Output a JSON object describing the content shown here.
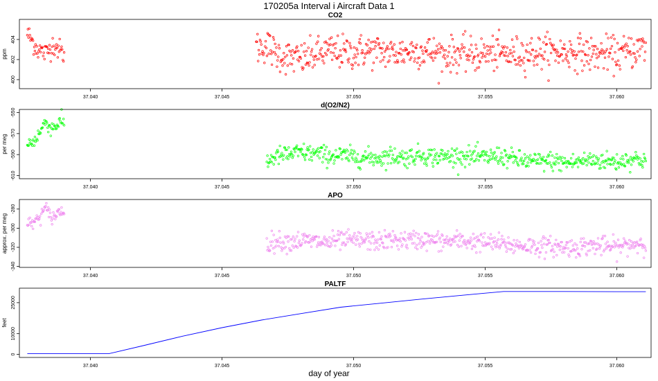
{
  "title": "170205a   Interval i Aircraft Data 1",
  "xlabel": "day of year",
  "chart_data": [
    {
      "type": "scatter",
      "title": "CO2",
      "ylabel": "ppm",
      "yticks": [
        400,
        402,
        404
      ],
      "ylim": [
        399.1,
        406.0
      ],
      "xlim": [
        37.0373,
        37.0613
      ],
      "xticks": [
        37.04,
        37.045,
        37.05,
        37.055,
        37.06
      ],
      "xtick_labels": [
        "37.040",
        "37.045",
        "37.050",
        "37.055",
        "37.060"
      ],
      "series": [
        {
          "color": "#ff0000",
          "segments": [
            {
              "x0": 37.0376,
              "x1": 37.039,
              "points": [
                [
                  37.0376,
                  404.6
                ],
                [
                  37.038,
                  403.0
                ],
                [
                  37.0383,
                  402.6
                ],
                [
                  37.0386,
                  403.6
                ],
                [
                  37.0388,
                  403.0
                ],
                [
                  37.039,
                  402.5
                ]
              ],
              "noise": 0.55
            },
            {
              "x0": 37.0463,
              "x1": 37.0611,
              "points": [
                [
                  37.0463,
                  403.2
                ],
                [
                  37.0467,
                  403.4
                ],
                [
                  37.047,
                  402.7
                ],
                [
                  37.0475,
                  402.2
                ],
                [
                  37.048,
                  402.0
                ],
                [
                  37.0485,
                  402.4
                ],
                [
                  37.049,
                  402.8
                ],
                [
                  37.0495,
                  402.7
                ],
                [
                  37.05,
                  402.7
                ],
                [
                  37.0505,
                  402.9
                ],
                [
                  37.051,
                  402.8
                ],
                [
                  37.0515,
                  402.6
                ],
                [
                  37.052,
                  402.8
                ],
                [
                  37.0525,
                  402.9
                ],
                [
                  37.053,
                  402.7
                ],
                [
                  37.0535,
                  402.5
                ],
                [
                  37.054,
                  402.6
                ],
                [
                  37.0545,
                  402.4
                ],
                [
                  37.055,
                  402.6
                ],
                [
                  37.0555,
                  402.6
                ],
                [
                  37.056,
                  402.5
                ],
                [
                  37.0565,
                  402.7
                ],
                [
                  37.057,
                  402.7
                ],
                [
                  37.0575,
                  402.8
                ],
                [
                  37.058,
                  402.7
                ],
                [
                  37.0585,
                  402.8
                ],
                [
                  37.059,
                  402.5
                ],
                [
                  37.0595,
                  402.6
                ],
                [
                  37.06,
                  402.5
                ],
                [
                  37.0605,
                  402.8
                ],
                [
                  37.0611,
                  403.3
                ]
              ],
              "noise": 0.85
            }
          ]
        }
      ]
    },
    {
      "type": "scatter",
      "title": "d(O2/N2)",
      "ylabel": "per meg",
      "yticks": [
        -610,
        -590,
        -570,
        -550
      ],
      "ylim": [
        -613,
        -547
      ],
      "xlim": [
        37.0373,
        37.0613
      ],
      "xticks": [
        37.04,
        37.045,
        37.05,
        37.055,
        37.06
      ],
      "xtick_labels": [
        "37.040",
        "37.045",
        "37.050",
        "37.055",
        "37.060"
      ],
      "series": [
        {
          "color": "#00ff00",
          "segments": [
            {
              "x0": 37.0376,
              "x1": 37.039,
              "points": [
                [
                  37.0376,
                  -581
                ],
                [
                  37.0379,
                  -576
                ],
                [
                  37.0381,
                  -568
                ],
                [
                  37.0383,
                  -558
                ],
                [
                  37.0385,
                  -565
                ],
                [
                  37.0387,
                  -562
                ],
                [
                  37.0389,
                  -558
                ],
                [
                  37.039,
                  -560
                ]
              ],
              "noise": 3.5
            },
            {
              "x0": 37.0467,
              "x1": 37.0611,
              "points": [
                [
                  37.0467,
                  -597
                ],
                [
                  37.047,
                  -592
                ],
                [
                  37.0475,
                  -590
                ],
                [
                  37.048,
                  -588
                ],
                [
                  37.0485,
                  -589
                ],
                [
                  37.049,
                  -591
                ],
                [
                  37.0495,
                  -591
                ],
                [
                  37.05,
                  -592
                ],
                [
                  37.0505,
                  -593
                ],
                [
                  37.051,
                  -593
                ],
                [
                  37.0515,
                  -591
                ],
                [
                  37.052,
                  -593
                ],
                [
                  37.0525,
                  -590
                ],
                [
                  37.053,
                  -592
                ],
                [
                  37.0535,
                  -592
                ],
                [
                  37.054,
                  -591
                ],
                [
                  37.0545,
                  -592
                ],
                [
                  37.055,
                  -593
                ],
                [
                  37.0555,
                  -591
                ],
                [
                  37.056,
                  -594
                ],
                [
                  37.0565,
                  -596
                ],
                [
                  37.057,
                  -597
                ],
                [
                  37.0575,
                  -596
                ],
                [
                  37.058,
                  -598
                ],
                [
                  37.0585,
                  -597
                ],
                [
                  37.059,
                  -595
                ],
                [
                  37.0595,
                  -596
                ],
                [
                  37.06,
                  -597
                ],
                [
                  37.0605,
                  -594
                ],
                [
                  37.0611,
                  -595
                ]
              ],
              "noise": 4.5
            }
          ]
        }
      ]
    },
    {
      "type": "scatter",
      "title": "APO",
      "ylabel": "approx. per meg",
      "yticks": [
        -340,
        -320,
        -300,
        -280
      ],
      "ylim": [
        -341,
        -270
      ],
      "xlim": [
        37.0373,
        37.0613
      ],
      "xticks": [
        37.04,
        37.045,
        37.05,
        37.055,
        37.06
      ],
      "xtick_labels": [
        "37.040",
        "37.045",
        "37.050",
        "37.055",
        "37.060"
      ],
      "series": [
        {
          "color": "#ee82ee",
          "segments": [
            {
              "x0": 37.0376,
              "x1": 37.039,
              "points": [
                [
                  37.0376,
                  -297
                ],
                [
                  37.0379,
                  -293
                ],
                [
                  37.0381,
                  -287
                ],
                [
                  37.0383,
                  -279
                ],
                [
                  37.0385,
                  -289
                ],
                [
                  37.0387,
                  -286
                ],
                [
                  37.0389,
                  -281
                ],
                [
                  37.039,
                  -285
                ]
              ],
              "noise": 3.5
            },
            {
              "x0": 37.0467,
              "x1": 37.0611,
              "points": [
                [
                  37.0467,
                  -316
                ],
                [
                  37.047,
                  -314
                ],
                [
                  37.0475,
                  -314
                ],
                [
                  37.048,
                  -313
                ],
                [
                  37.0485,
                  -314
                ],
                [
                  37.049,
                  -315
                ],
                [
                  37.0495,
                  -313
                ],
                [
                  37.05,
                  -313
                ],
                [
                  37.0505,
                  -313
                ],
                [
                  37.051,
                  -314
                ],
                [
                  37.0515,
                  -312
                ],
                [
                  37.052,
                  -313
                ],
                [
                  37.0525,
                  -312
                ],
                [
                  37.053,
                  -313
                ],
                [
                  37.0535,
                  -314
                ],
                [
                  37.054,
                  -313
                ],
                [
                  37.0545,
                  -314
                ],
                [
                  37.055,
                  -315
                ],
                [
                  37.0555,
                  -316
                ],
                [
                  37.056,
                  -318
                ],
                [
                  37.0565,
                  -318
                ],
                [
                  37.057,
                  -319
                ],
                [
                  37.0575,
                  -319
                ],
                [
                  37.058,
                  -320
                ],
                [
                  37.0585,
                  -320
                ],
                [
                  37.059,
                  -318
                ],
                [
                  37.0595,
                  -319
                ],
                [
                  37.06,
                  -320
                ],
                [
                  37.0605,
                  -317
                ],
                [
                  37.0611,
                  -315
                ]
              ],
              "noise": 5.0
            }
          ]
        }
      ]
    },
    {
      "type": "line",
      "title": "PALTF",
      "ylabel": "feet",
      "yticks": [
        0,
        10000,
        25000
      ],
      "ylim": [
        -1500,
        32000
      ],
      "xlim": [
        37.0373,
        37.0613
      ],
      "xticks": [
        37.04,
        37.045,
        37.05,
        37.055,
        37.06
      ],
      "xtick_labels": [
        "37.040",
        "37.045",
        "37.050",
        "37.055",
        "37.060"
      ],
      "series": [
        {
          "color": "#0000ff",
          "points": [
            [
              37.0376,
              300
            ],
            [
              37.0383,
              300
            ],
            [
              37.039,
              300
            ],
            [
              37.0397,
              300
            ],
            [
              37.0407,
              300
            ],
            [
              37.042,
              4200
            ],
            [
              37.0435,
              8800
            ],
            [
              37.045,
              12900
            ],
            [
              37.0465,
              16600
            ],
            [
              37.048,
              19700
            ],
            [
              37.0495,
              22800
            ],
            [
              37.051,
              24700
            ],
            [
              37.0525,
              26600
            ],
            [
              37.054,
              28400
            ],
            [
              37.055,
              29600
            ],
            [
              37.0557,
              30400
            ],
            [
              37.0565,
              30400
            ],
            [
              37.058,
              30400
            ],
            [
              37.06,
              30300
            ],
            [
              37.0611,
              30300
            ]
          ]
        }
      ]
    }
  ]
}
